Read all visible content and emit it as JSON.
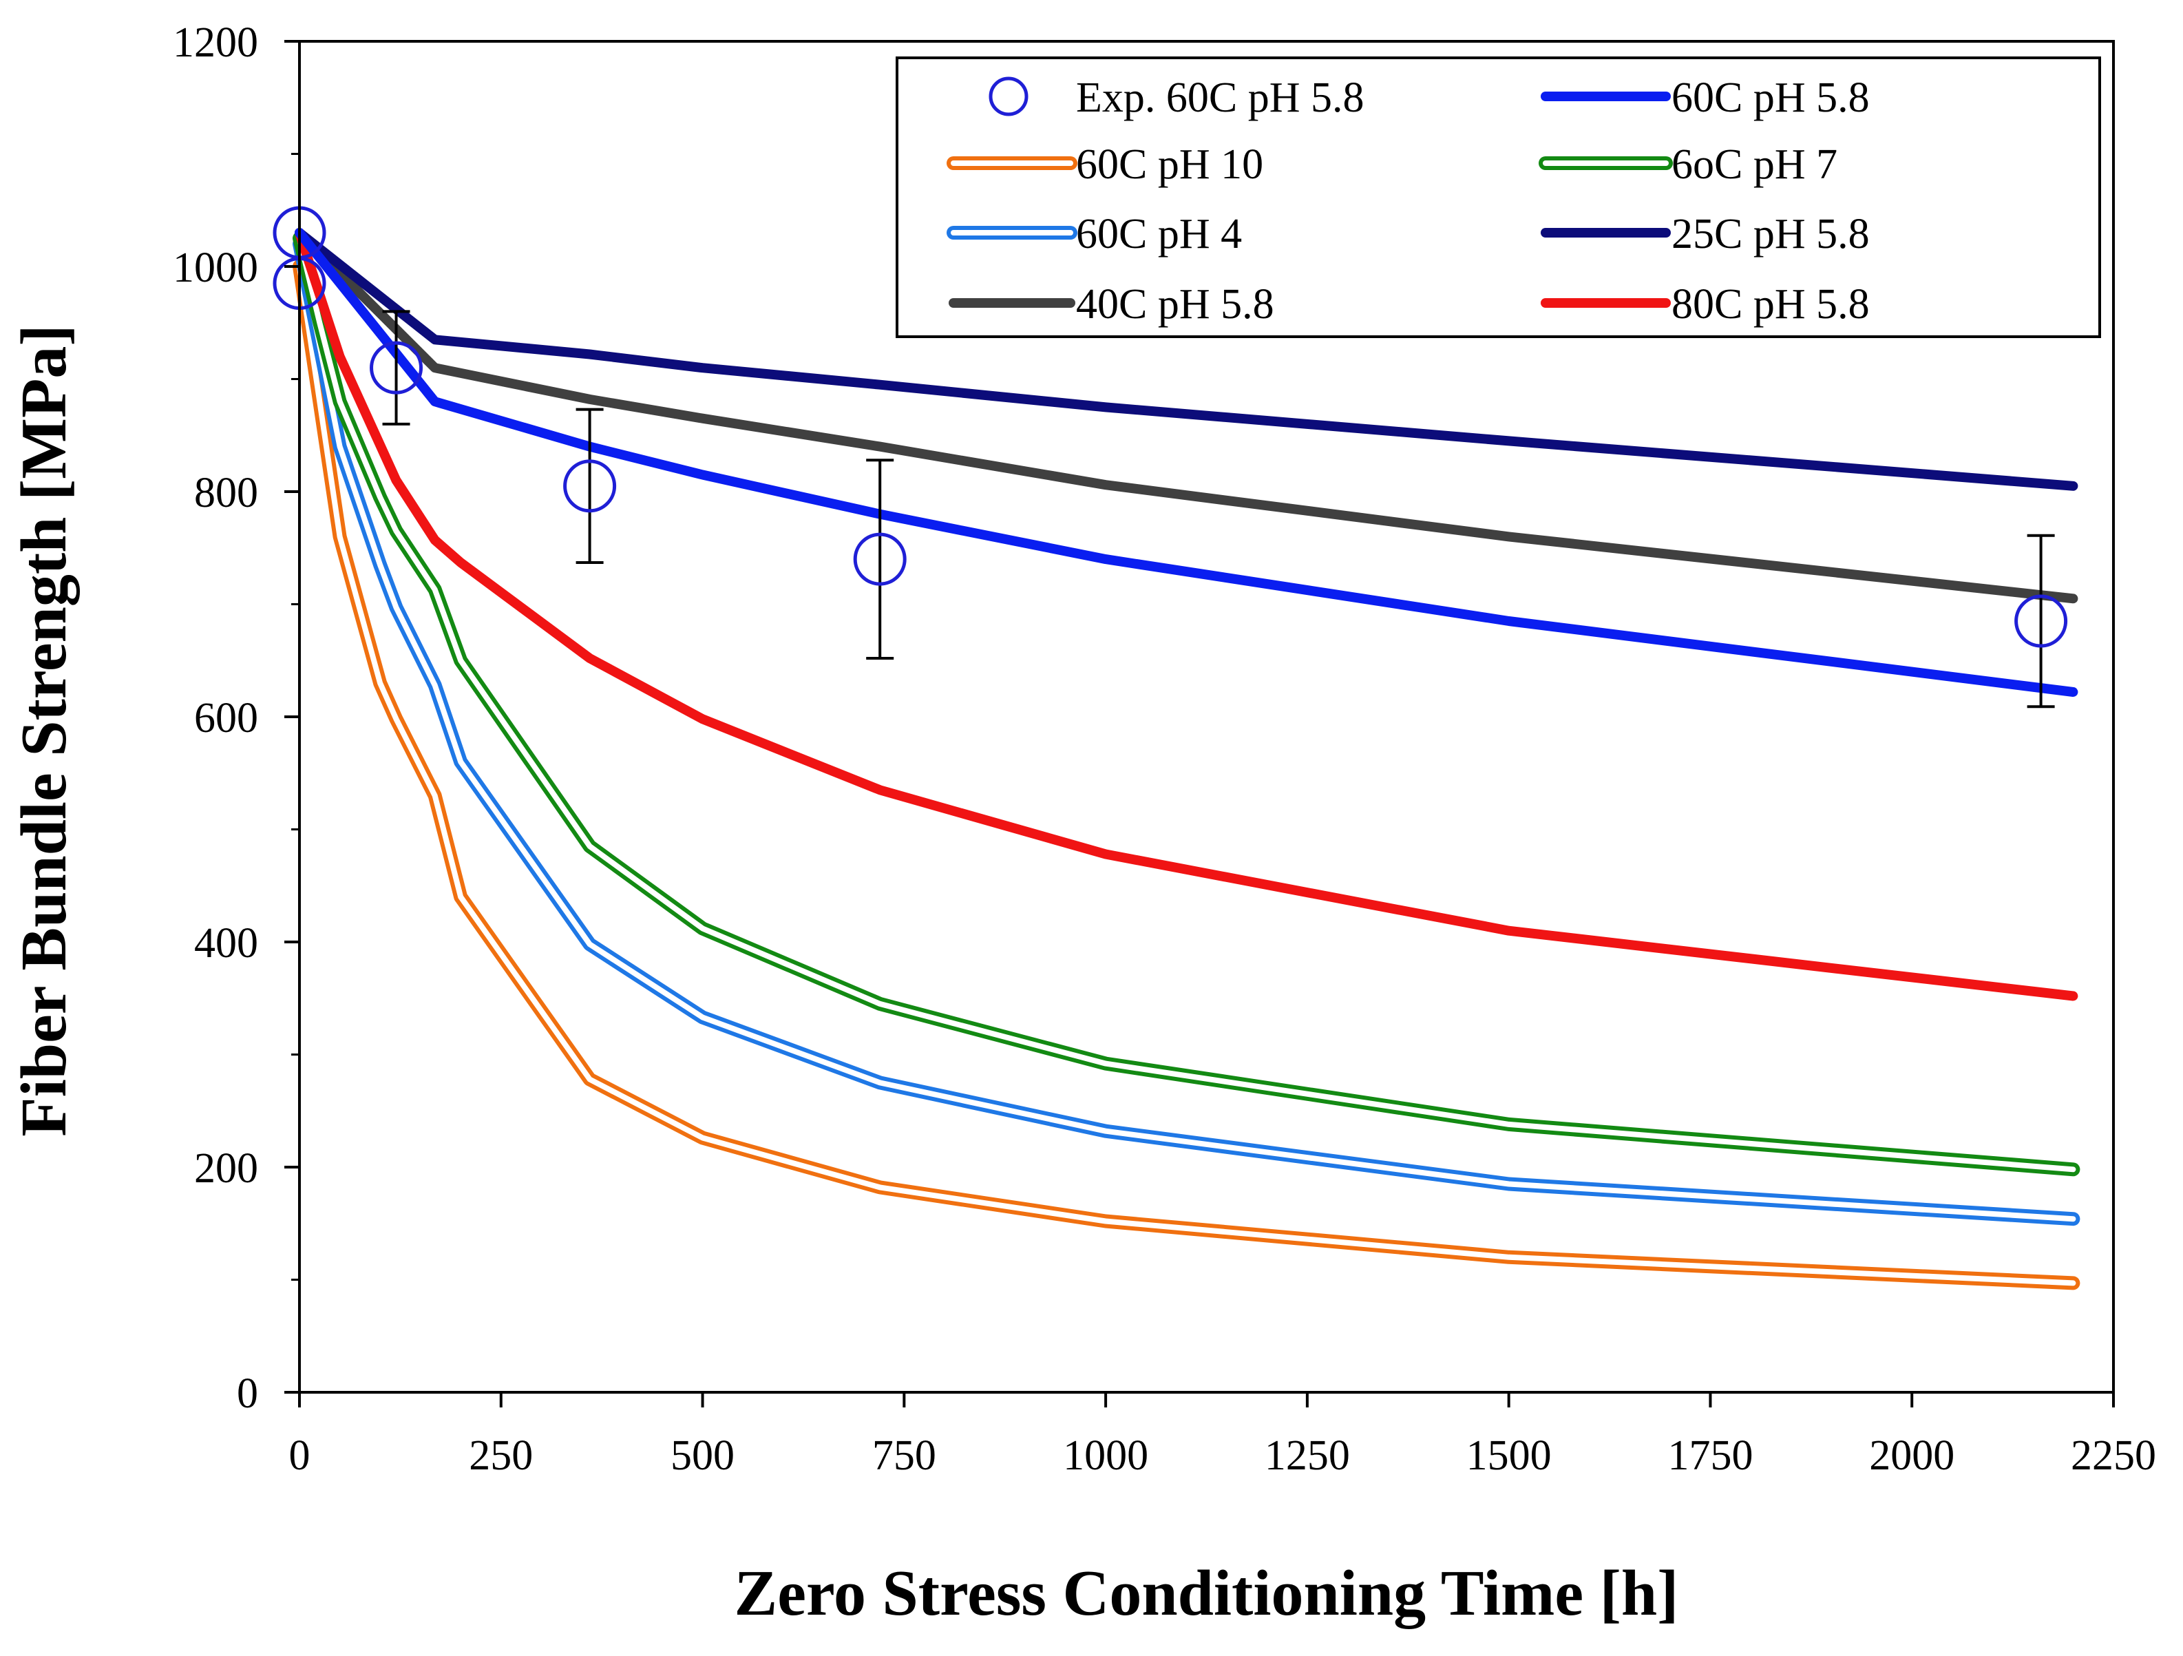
{
  "chart_data": {
    "type": "line",
    "xlabel": "Zero Stress Conditioning Time [h]",
    "ylabel": "Fiber Bundle Strength [MPa]",
    "xlim": [
      0,
      2250
    ],
    "ylim": [
      0,
      1200
    ],
    "xticks": [
      0,
      250,
      500,
      750,
      1000,
      1250,
      1500,
      1750,
      2000,
      2250
    ],
    "yticks": [
      0,
      200,
      400,
      600,
      800,
      1000,
      1200
    ],
    "xtick_labels": [
      "0",
      "250",
      "500",
      "750",
      "1000",
      "1250",
      "1500",
      "1750",
      "2000",
      "2250"
    ],
    "ytick_labels": [
      "0",
      "200",
      "400",
      "600",
      "800",
      "1000",
      "1200"
    ],
    "grid": false,
    "legend_position": "top-right",
    "experimental": {
      "name": "Exp. 60C pH 5.8",
      "color": "#1f1fd6",
      "points": [
        {
          "x": 0,
          "y": 1030,
          "err": 0
        },
        {
          "x": 0,
          "y": 985,
          "err": 0
        },
        {
          "x": 120,
          "y": 910,
          "err": 50
        },
        {
          "x": 360,
          "y": 805,
          "err": 68
        },
        {
          "x": 720,
          "y": 740,
          "err": 88
        },
        {
          "x": 2160,
          "y": 685,
          "err": 76
        }
      ]
    },
    "series": [
      {
        "name": "60C pH 5.8",
        "color": "#0a1ef0",
        "style": "solid",
        "x": [
          0,
          168,
          360,
          500,
          720,
          1000,
          1500,
          2200
        ],
        "y": [
          1030,
          880,
          840,
          815,
          780,
          740,
          685,
          622
        ]
      },
      {
        "name": "60C pH 10",
        "color": "#f07010",
        "style": "double",
        "x": [
          0,
          25,
          50,
          100,
          120,
          168,
          200,
          360,
          500,
          720,
          1000,
          1500,
          2200
        ],
        "y": [
          1000,
          880,
          760,
          630,
          598,
          530,
          440,
          278,
          226,
          182,
          152,
          120,
          97
        ]
      },
      {
        "name": "6oC pH 7",
        "color": "#138a13",
        "style": "double",
        "x": [
          0,
          25,
          50,
          100,
          120,
          168,
          200,
          360,
          500,
          720,
          1000,
          1500,
          2200
        ],
        "y": [
          1025,
          950,
          880,
          795,
          765,
          713,
          650,
          485,
          412,
          345,
          292,
          238,
          198
        ]
      },
      {
        "name": "60C pH 4",
        "color": "#1f78e6",
        "style": "double",
        "x": [
          0,
          25,
          50,
          100,
          120,
          168,
          200,
          360,
          500,
          720,
          1000,
          1500,
          2200
        ],
        "y": [
          1020,
          930,
          840,
          735,
          697,
          628,
          560,
          398,
          333,
          275,
          232,
          185,
          154
        ]
      },
      {
        "name": "25C pH 5.8",
        "color": "#0c0c7a",
        "style": "solid",
        "x": [
          0,
          168,
          360,
          500,
          720,
          1000,
          1500,
          2200
        ],
        "y": [
          1030,
          935,
          922,
          910,
          895,
          875,
          845,
          805
        ]
      },
      {
        "name": "40C pH 5.8",
        "color": "#404040",
        "style": "solid",
        "x": [
          0,
          168,
          360,
          500,
          720,
          1000,
          1500,
          2200
        ],
        "y": [
          1030,
          910,
          882,
          865,
          840,
          806,
          760,
          705
        ]
      },
      {
        "name": "80C pH 5.8",
        "color": "#f01414",
        "style": "solid",
        "x": [
          0,
          50,
          120,
          168,
          200,
          360,
          500,
          720,
          1000,
          1500,
          2200
        ],
        "y": [
          1030,
          920,
          810,
          757,
          737,
          652,
          598,
          535,
          478,
          410,
          352
        ]
      }
    ],
    "legend": [
      {
        "label": "Exp. 60C pH 5.8",
        "marker": "circle",
        "color": "#1f1fd6"
      },
      {
        "label": "60C pH 5.8",
        "marker": "line",
        "style": "solid",
        "color": "#0a1ef0"
      },
      {
        "label": "60C pH 10",
        "marker": "line",
        "style": "double",
        "color": "#f07010"
      },
      {
        "label": "6oC pH 7",
        "marker": "line",
        "style": "double",
        "color": "#138a13"
      },
      {
        "label": "60C pH 4",
        "marker": "line",
        "style": "double",
        "color": "#1f78e6"
      },
      {
        "label": "25C pH 5.8",
        "marker": "line",
        "style": "solid",
        "color": "#0c0c7a"
      },
      {
        "label": "40C pH 5.8",
        "marker": "line",
        "style": "solid",
        "color": "#404040"
      },
      {
        "label": "80C pH 5.8",
        "marker": "line",
        "style": "solid",
        "color": "#f01414"
      }
    ]
  }
}
